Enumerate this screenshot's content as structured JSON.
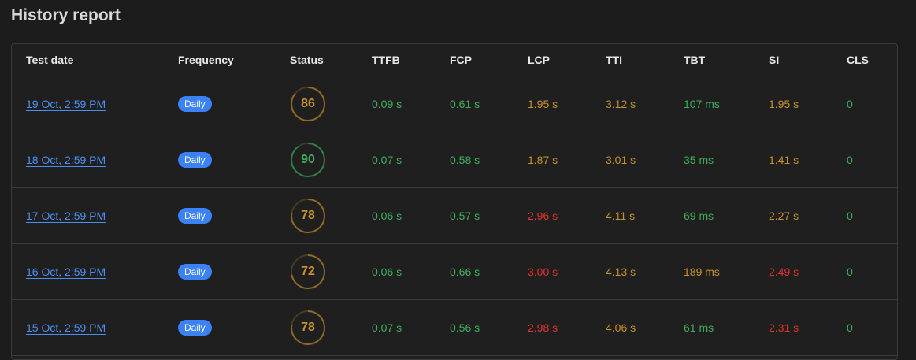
{
  "title": "History report",
  "colors": {
    "good": "#3fae5a",
    "avg": "#c8912a",
    "poor": "#e0332b",
    "link": "#4a90f0",
    "badge": "#3b82f6"
  },
  "columns": [
    "Test date",
    "Frequency",
    "Status",
    "TTFB",
    "FCP",
    "LCP",
    "TTI",
    "TBT",
    "SI",
    "CLS"
  ],
  "rows": [
    {
      "date": "19 Oct, 2:59 PM",
      "frequency": "Daily",
      "score": 86,
      "score_level": "avg",
      "metrics": [
        {
          "v": "0.09 s",
          "l": "good"
        },
        {
          "v": "0.61 s",
          "l": "good"
        },
        {
          "v": "1.95 s",
          "l": "avg"
        },
        {
          "v": "3.12 s",
          "l": "avg"
        },
        {
          "v": "107 ms",
          "l": "good"
        },
        {
          "v": "1.95 s",
          "l": "avg"
        },
        {
          "v": "0",
          "l": "good"
        }
      ]
    },
    {
      "date": "18 Oct, 2:59 PM",
      "frequency": "Daily",
      "score": 90,
      "score_level": "good",
      "metrics": [
        {
          "v": "0.07 s",
          "l": "good"
        },
        {
          "v": "0.58 s",
          "l": "good"
        },
        {
          "v": "1.87 s",
          "l": "avg"
        },
        {
          "v": "3.01 s",
          "l": "avg"
        },
        {
          "v": "35 ms",
          "l": "good"
        },
        {
          "v": "1.41 s",
          "l": "avg"
        },
        {
          "v": "0",
          "l": "good"
        }
      ]
    },
    {
      "date": "17 Oct, 2:59 PM",
      "frequency": "Daily",
      "score": 78,
      "score_level": "avg",
      "metrics": [
        {
          "v": "0.06 s",
          "l": "good"
        },
        {
          "v": "0.57 s",
          "l": "good"
        },
        {
          "v": "2.96 s",
          "l": "poor"
        },
        {
          "v": "4.11 s",
          "l": "avg"
        },
        {
          "v": "69 ms",
          "l": "good"
        },
        {
          "v": "2.27 s",
          "l": "avg"
        },
        {
          "v": "0",
          "l": "good"
        }
      ]
    },
    {
      "date": "16 Oct, 2:59 PM",
      "frequency": "Daily",
      "score": 72,
      "score_level": "avg",
      "metrics": [
        {
          "v": "0.06 s",
          "l": "good"
        },
        {
          "v": "0.66 s",
          "l": "good"
        },
        {
          "v": "3.00 s",
          "l": "poor"
        },
        {
          "v": "4.13 s",
          "l": "avg"
        },
        {
          "v": "189 ms",
          "l": "avg"
        },
        {
          "v": "2.49 s",
          "l": "poor"
        },
        {
          "v": "0",
          "l": "good"
        }
      ]
    },
    {
      "date": "15 Oct, 2:59 PM",
      "frequency": "Daily",
      "score": 78,
      "score_level": "avg",
      "metrics": [
        {
          "v": "0.07 s",
          "l": "good"
        },
        {
          "v": "0.56 s",
          "l": "good"
        },
        {
          "v": "2.98 s",
          "l": "poor"
        },
        {
          "v": "4.06 s",
          "l": "avg"
        },
        {
          "v": "61 ms",
          "l": "good"
        },
        {
          "v": "2.31 s",
          "l": "poor"
        },
        {
          "v": "0",
          "l": "good"
        }
      ]
    }
  ]
}
